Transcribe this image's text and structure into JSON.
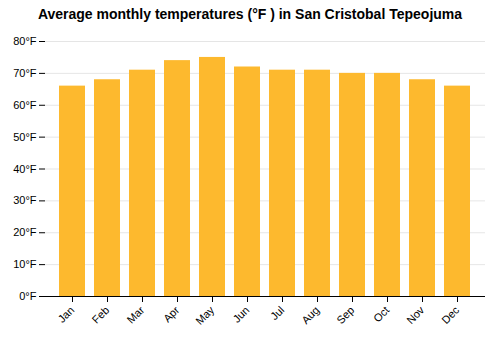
{
  "chart_data": {
    "type": "bar",
    "title": "Average monthly temperatures (°F ) in San Cristobal Tepeojuma",
    "categories": [
      "Jan",
      "Feb",
      "Mar",
      "Apr",
      "May",
      "Jun",
      "Jul",
      "Aug",
      "Sep",
      "Oct",
      "Nov",
      "Dec"
    ],
    "values": [
      66,
      68,
      71,
      74,
      75,
      72,
      71,
      71,
      70,
      70,
      68,
      66
    ],
    "color": "#FDB92E",
    "ylim": [
      0,
      80
    ],
    "yticks": [
      {
        "value": 0,
        "label": "0°F"
      },
      {
        "value": 10,
        "label": "10°F"
      },
      {
        "value": 20,
        "label": "20°F"
      },
      {
        "value": 30,
        "label": "30°F"
      },
      {
        "value": 40,
        "label": "40°F"
      },
      {
        "value": 50,
        "label": "50°F"
      },
      {
        "value": 60,
        "label": "60°F"
      },
      {
        "value": 70,
        "label": "70°F"
      },
      {
        "value": 80,
        "label": "80°F"
      }
    ],
    "grid": true
  }
}
